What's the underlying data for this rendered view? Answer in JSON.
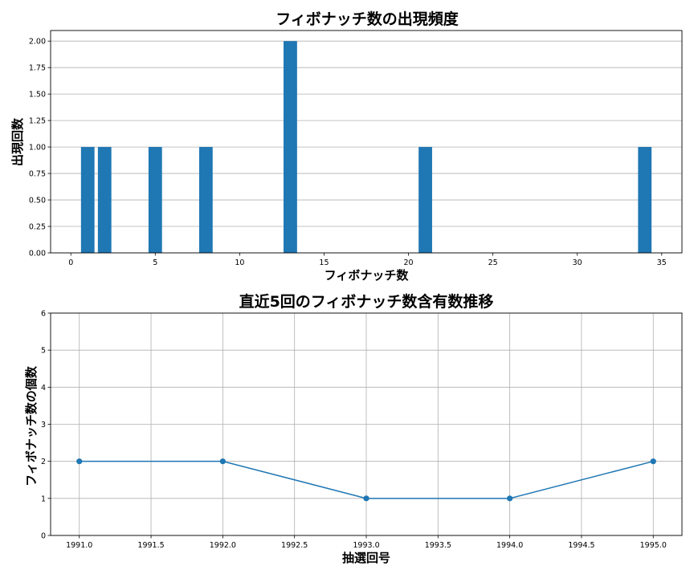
{
  "chart_data": [
    {
      "type": "bar",
      "title": "フィボナッチ数の出現頻度",
      "xlabel": "フィボナッチ数",
      "ylabel": "出現回数",
      "x": [
        1,
        2,
        5,
        8,
        13,
        21,
        34
      ],
      "values": [
        1,
        1,
        1,
        1,
        2,
        1,
        1
      ],
      "xlim": [
        -1.2,
        36.2
      ],
      "ylim": [
        0,
        2.1
      ],
      "xticks": [
        0,
        5,
        10,
        15,
        20,
        25,
        30,
        35
      ],
      "xtick_labels": [
        "0",
        "5",
        "10",
        "15",
        "20",
        "25",
        "30",
        "35"
      ],
      "yticks": [
        0,
        0.25,
        0.5,
        0.75,
        1.0,
        1.25,
        1.5,
        1.75,
        2.0
      ],
      "ytick_labels": [
        "0.00",
        "0.25",
        "0.50",
        "0.75",
        "1.00",
        "1.25",
        "1.50",
        "1.75",
        "2.00"
      ],
      "grid": "y",
      "bar_width": 0.8,
      "color": "#1f77b4"
    },
    {
      "type": "line",
      "title": "直近5回のフィボナッチ数含有数推移",
      "xlabel": "抽選回号",
      "ylabel": "フィボナッチ数の個数",
      "x": [
        1991,
        1992,
        1993,
        1994,
        1995
      ],
      "values": [
        2,
        2,
        1,
        1,
        2
      ],
      "xlim": [
        1990.8,
        1995.2
      ],
      "ylim": [
        0,
        6
      ],
      "xticks": [
        1991.0,
        1991.5,
        1992.0,
        1992.5,
        1993.0,
        1993.5,
        1994.0,
        1994.5,
        1995.0
      ],
      "xtick_labels": [
        "1991.0",
        "1991.5",
        "1992.0",
        "1992.5",
        "1993.0",
        "1993.5",
        "1994.0",
        "1994.5",
        "1995.0"
      ],
      "yticks": [
        0,
        1,
        2,
        3,
        4,
        5,
        6
      ],
      "ytick_labels": [
        "0",
        "1",
        "2",
        "3",
        "4",
        "5",
        "6"
      ],
      "grid": "both",
      "marker": "circle",
      "color": "#1f77b4"
    }
  ]
}
